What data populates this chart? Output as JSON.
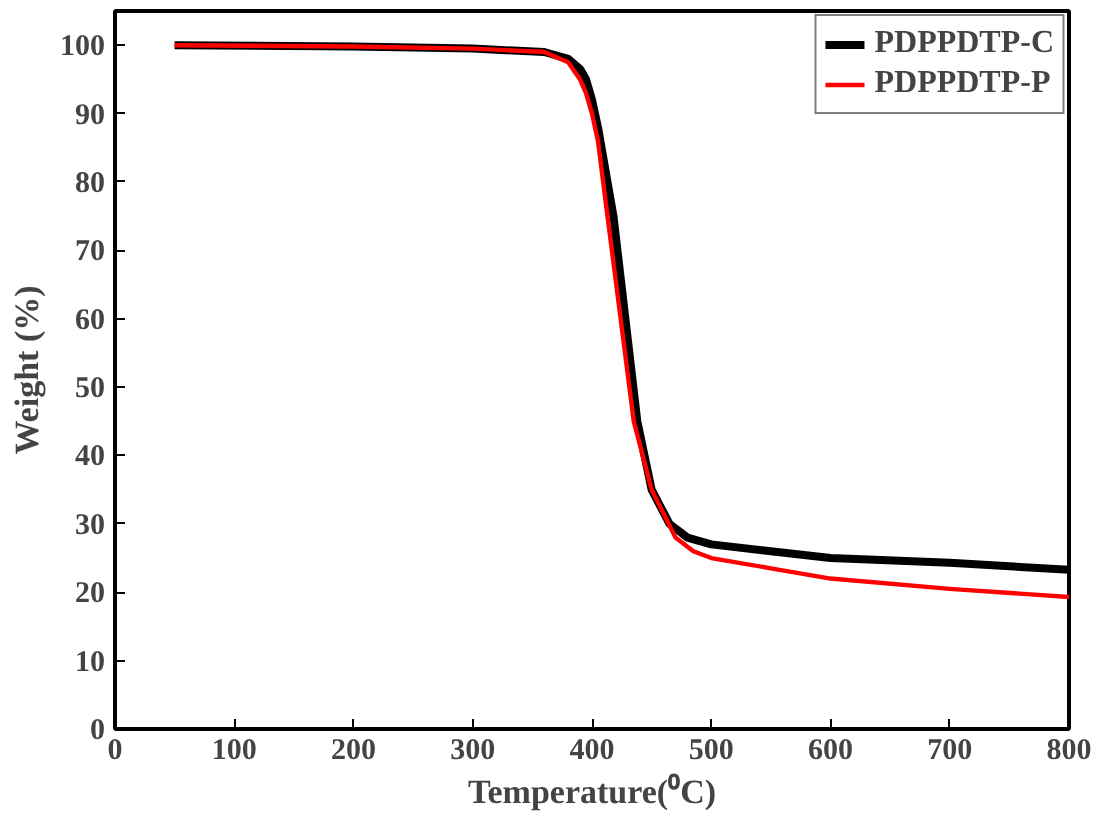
{
  "chart_data": {
    "type": "line",
    "xlabel": "Temperature(⁰C)",
    "ylabel": "Weight (%)",
    "xlim": [
      0,
      800
    ],
    "ylim": [
      0,
      105
    ],
    "xticks": [
      0,
      100,
      200,
      300,
      400,
      500,
      600,
      700,
      800
    ],
    "yticks": [
      0,
      10,
      20,
      30,
      40,
      50,
      60,
      70,
      80,
      90,
      100
    ],
    "legend": "top right",
    "grid": false,
    "series": [
      {
        "name": "PDPPDTP-C",
        "color": "#000000",
        "x": [
          50,
          200,
          300,
          360,
          380,
          390,
          395,
          400,
          405,
          410,
          418,
          428,
          438,
          450,
          465,
          480,
          500,
          550,
          600,
          700,
          800
        ],
        "values": [
          100,
          99.8,
          99.5,
          99,
          98,
          96.5,
          95,
          92,
          88,
          83,
          75,
          60,
          45,
          35,
          30,
          28,
          27,
          26,
          25,
          24.3,
          23.3
        ]
      },
      {
        "name": "PDPPDTP-P",
        "color": "#ff0000",
        "x": [
          50,
          200,
          300,
          360,
          380,
          390,
          395,
          400,
          405,
          413,
          424,
          435,
          450,
          470,
          485,
          500,
          550,
          600,
          700,
          800
        ],
        "values": [
          100,
          99.8,
          99.5,
          99,
          97.5,
          95,
          93,
          90,
          86,
          75,
          60,
          45,
          35,
          28,
          26,
          25,
          23.5,
          22,
          20.5,
          19.3
        ]
      }
    ]
  }
}
